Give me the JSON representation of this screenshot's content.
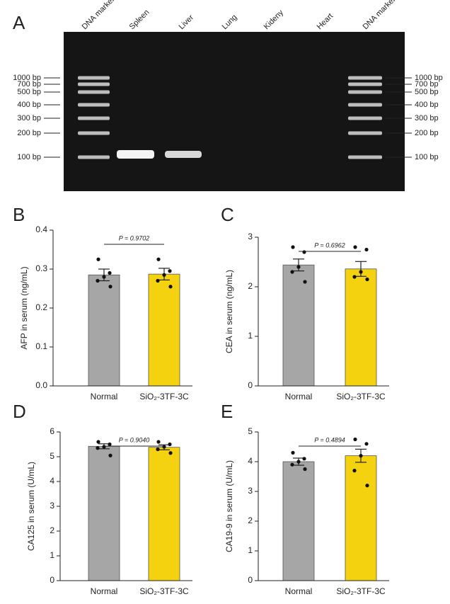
{
  "gel": {
    "panel": "A",
    "lanes": [
      "DNA marker",
      "Spleen",
      "Liver",
      "Lung",
      "Kideny",
      "Heart",
      "DNA marker"
    ],
    "ladder": [
      "1000 bp",
      "700 bp",
      "500 bp",
      "400 bp",
      "300 bp",
      "200 bp",
      "100 bp"
    ]
  },
  "chart_data": [
    {
      "type": "bar",
      "panel": "B",
      "y_label": "AFP in serum (ng/mL)",
      "categories": [
        "Normal",
        "SiO₂-3TF-3C"
      ],
      "colors": [
        "#a6a6a6",
        "#f5d20f"
      ],
      "values": [
        0.285,
        0.287
      ],
      "errors": [
        0.015,
        0.015
      ],
      "points": [
        [
          0.325,
          0.29,
          0.28,
          0.27,
          0.255
        ],
        [
          0.325,
          0.295,
          0.285,
          0.27,
          0.255
        ]
      ],
      "annotation": "P = 0.9702",
      "ylim": [
        0,
        0.4
      ],
      "yticks": [
        {
          "value": 0,
          "label": "0.0"
        },
        0.1,
        0.2,
        0.3,
        0.4
      ]
    },
    {
      "type": "bar",
      "panel": "C",
      "y_label": "CEA in serum (ng/mL)",
      "categories": [
        "Normal",
        "SiO₂-3TF-3C"
      ],
      "colors": [
        "#a6a6a6",
        "#f5d20f"
      ],
      "values": [
        2.44,
        2.36
      ],
      "errors": [
        0.12,
        0.15
      ],
      "points": [
        [
          2.8,
          2.7,
          2.4,
          2.3,
          2.1
        ],
        [
          2.8,
          2.75,
          2.3,
          2.2,
          2.15
        ]
      ],
      "annotation": "P = 0.6962",
      "ylim": [
        0,
        3
      ],
      "yticks": [
        0,
        1,
        2,
        3
      ]
    },
    {
      "type": "bar",
      "panel": "D",
      "y_label": "CA125 in serum (U/mL)",
      "categories": [
        "Normal",
        "SiO₂-3TF-3C"
      ],
      "colors": [
        "#a6a6a6",
        "#f5d20f"
      ],
      "values": [
        5.42,
        5.38
      ],
      "errors": [
        0.1,
        0.1
      ],
      "points": [
        [
          5.6,
          5.5,
          5.4,
          5.35,
          5.05
        ],
        [
          5.6,
          5.5,
          5.4,
          5.3,
          5.15
        ]
      ],
      "annotation": "P = 0.9040",
      "ylim": [
        0,
        6
      ],
      "yticks": [
        0,
        1,
        2,
        3,
        4,
        5,
        6
      ]
    },
    {
      "type": "bar",
      "panel": "E",
      "y_label": "CA19-9 in serum (U/mL)",
      "categories": [
        "Normal",
        "SiO₂-3TF-3C"
      ],
      "colors": [
        "#a6a6a6",
        "#f5d20f"
      ],
      "values": [
        4.0,
        4.2
      ],
      "errors": [
        0.12,
        0.22
      ],
      "points": [
        [
          4.3,
          4.1,
          4.0,
          3.9,
          3.75
        ],
        [
          4.75,
          4.6,
          4.2,
          3.7,
          3.2
        ]
      ],
      "annotation": "P = 0.4894",
      "ylim": [
        0,
        5
      ],
      "yticks": [
        0,
        1,
        2,
        3,
        4,
        5
      ]
    }
  ]
}
